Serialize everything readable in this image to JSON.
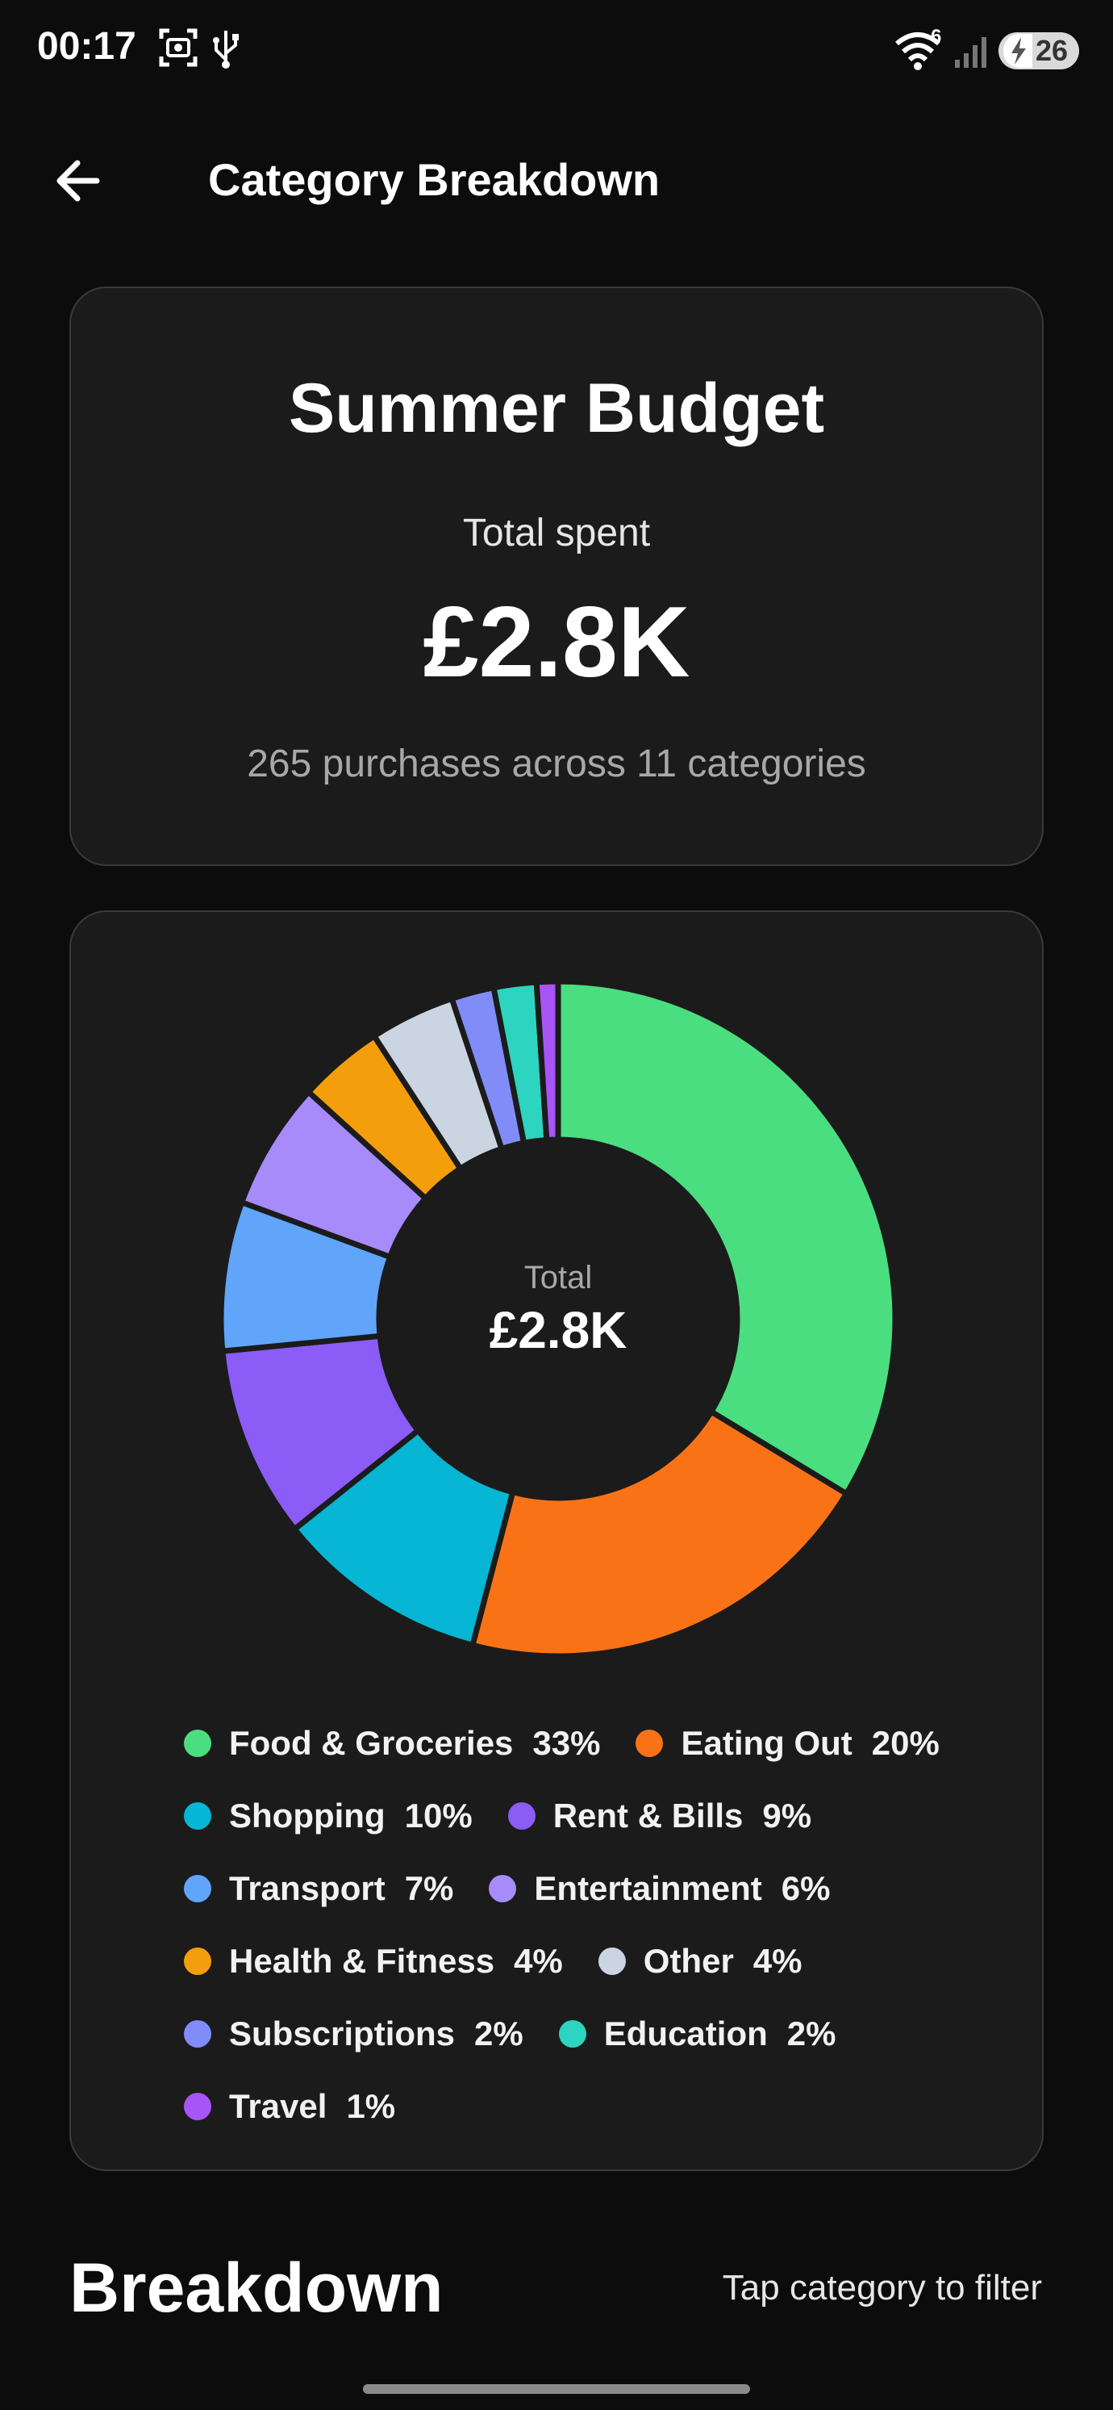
{
  "status_bar": {
    "time": "00:17",
    "wifi_badge": "6",
    "battery_level": "26"
  },
  "app_bar": {
    "title": "Category Breakdown",
    "back_icon": "arrow-left-icon"
  },
  "summary": {
    "budget_name": "Summer Budget",
    "total_label": "Total spent",
    "total_value": "£2.8K",
    "count_text": "265 purchases across 11 categories"
  },
  "chart_data": {
    "type": "pie",
    "center_label": "Total",
    "center_value": "£2.8K",
    "categories": [
      "Food & Groceries",
      "Eating Out",
      "Shopping",
      "Rent & Bills",
      "Transport",
      "Entertainment",
      "Health & Fitness",
      "Other",
      "Subscriptions",
      "Education",
      "Travel"
    ],
    "values": [
      33,
      20,
      10,
      9,
      7,
      6,
      4,
      4,
      2,
      2,
      1
    ],
    "value_labels": [
      "33%",
      "20%",
      "10%",
      "9%",
      "7%",
      "6%",
      "4%",
      "4%",
      "2%",
      "2%",
      "1%"
    ],
    "colors": [
      "#4ade80",
      "#f97316",
      "#06b6d4",
      "#8b5cf6",
      "#60a5fa",
      "#a78bfa",
      "#f59e0b",
      "#cbd5e1",
      "#818cf8",
      "#2dd4bf",
      "#a855f7"
    ],
    "legend_position": "bottom"
  },
  "breakdown": {
    "heading": "Breakdown",
    "hint": "Tap category to filter"
  }
}
